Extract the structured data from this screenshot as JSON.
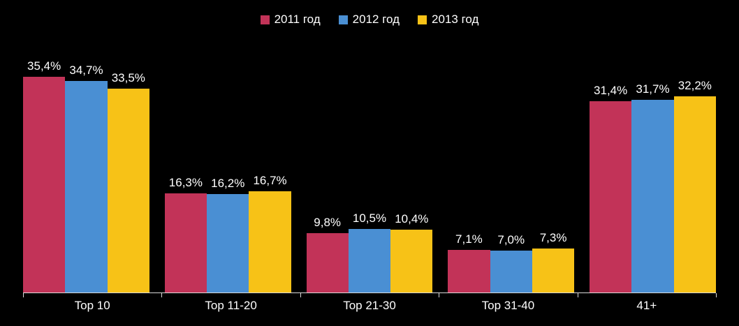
{
  "chart_data": {
    "type": "bar",
    "categories": [
      "Top 10",
      "Top 11-20",
      "Top 21-30",
      "Top 31-40",
      "41+"
    ],
    "series": [
      {
        "name": "2011 год",
        "color": "#C23358",
        "values": [
          35.4,
          16.3,
          9.8,
          7.1,
          31.4
        ],
        "labels": [
          "35,4%",
          "16,3%",
          "9,8%",
          "7,1%",
          "31,4%"
        ]
      },
      {
        "name": "2012 год",
        "color": "#4A8FD3",
        "values": [
          34.7,
          16.2,
          10.5,
          7.0,
          31.7
        ],
        "labels": [
          "34,7%",
          "16,2%",
          "10,5%",
          "7,0%",
          "31,7%"
        ]
      },
      {
        "name": "2013 год",
        "color": "#F7C217",
        "values": [
          33.5,
          16.7,
          10.4,
          7.3,
          32.2
        ],
        "labels": [
          "33,5%",
          "16,7%",
          "10,4%",
          "7,3%",
          "32,2%"
        ]
      }
    ],
    "title": "",
    "xlabel": "",
    "ylabel": "",
    "ylim": [
      0,
      40
    ],
    "grid": false,
    "legend_position": "top",
    "background_color": "#000000",
    "text_color": "#FFFFFF",
    "axis_color": "#D9D9D9"
  }
}
